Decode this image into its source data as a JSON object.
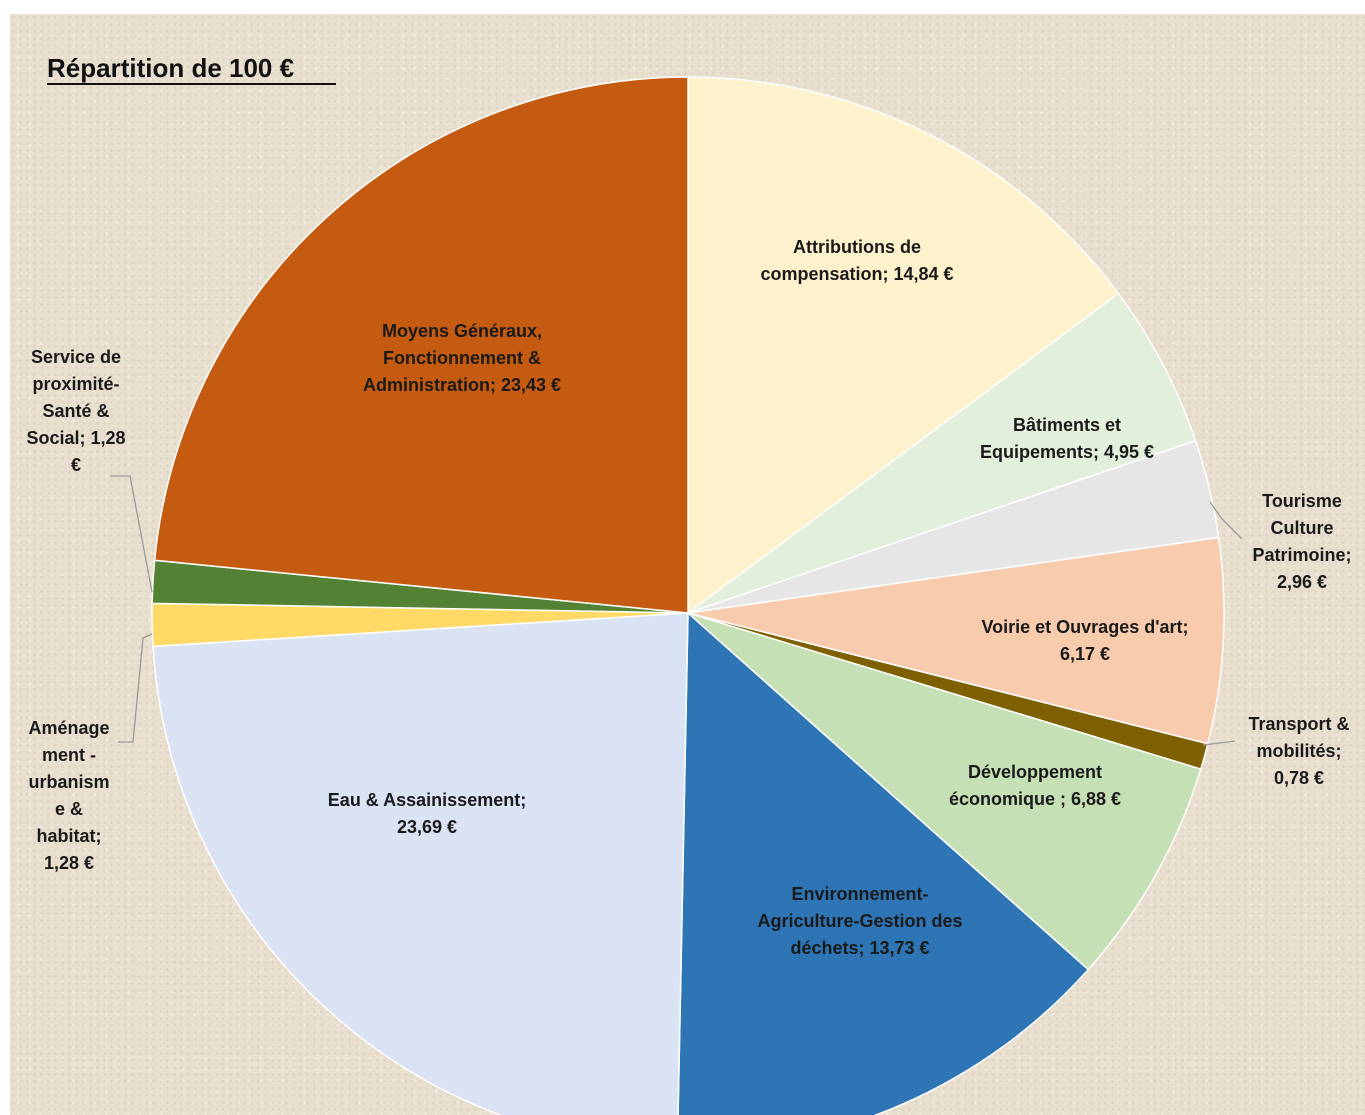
{
  "chart_data": {
    "type": "pie",
    "title": "Répartition de 100 €",
    "unit": "€",
    "start_angle_deg": 0,
    "direction": "clockwise",
    "slices": [
      {
        "name": "Attributions de compensation",
        "value": 14.84,
        "display": "14,84 €",
        "color": "#fef2cc"
      },
      {
        "name": "Bâtiments et Equipements",
        "value": 4.95,
        "display": "4,95 €",
        "color": "#e2efda"
      },
      {
        "name": "Tourisme Culture Patrimoine",
        "value": 2.96,
        "display": "2,96 €",
        "color": "#e7e6e6"
      },
      {
        "name": "Voirie et Ouvrages d'art",
        "value": 6.17,
        "display": "6,17 €",
        "color": "#f8cbad"
      },
      {
        "name": "Transport & mobilités",
        "value": 0.78,
        "display": "0,78 €",
        "color": "#7f6000"
      },
      {
        "name": "Développement économique",
        "value": 6.88,
        "display": "6,88 €",
        "color": "#c5e0b4"
      },
      {
        "name": "Environnement-Agriculture-Gestion des déchets",
        "value": 13.73,
        "display": "13,73 €",
        "color": "#2e75b6"
      },
      {
        "name": "Eau & Assainissement",
        "value": 23.69,
        "display": "23,69 €",
        "color": "#dae3f3"
      },
      {
        "name": "Aménagement - urbanisme & habitat",
        "value": 1.28,
        "display": "1,28 €",
        "color": "#ffd966"
      },
      {
        "name": "Service de proximité-Santé & Social",
        "value": 1.28,
        "display": "1,28 €",
        "color": "#548235"
      },
      {
        "name": "Moyens Généraux, Fonctionnement & Administration",
        "value": 23.43,
        "display": "23,43 €",
        "color": "#c55a11"
      }
    ],
    "labels": [
      {
        "lines": [
          "Attributions de",
          "compensation;  14,84 €"
        ]
      },
      {
        "lines": [
          "Bâtiments et",
          "Equipements;  4,95 €"
        ]
      },
      {
        "lines": [
          "Tourisme",
          "Culture",
          "Patrimoine;",
          "2,96 €"
        ]
      },
      {
        "lines": [
          "Voirie et Ouvrages d'art;",
          "6,17 €"
        ]
      },
      {
        "lines": [
          "Transport &",
          "mobilités;",
          "0,78 €"
        ]
      },
      {
        "lines": [
          "Développement",
          "économique ;  6,88 €"
        ]
      },
      {
        "lines": [
          "Environnement-",
          "Agriculture-Gestion des",
          "déchets;  13,73 €"
        ]
      },
      {
        "lines": [
          "Eau & Assainissement;",
          "23,69 €"
        ]
      },
      {
        "lines": [
          "Aménage",
          "ment -",
          "urbanism",
          "e &",
          "habitat;",
          "1,28 €"
        ]
      },
      {
        "lines": [
          "Service de",
          "proximité-",
          "Santé &",
          "Social;  1,28",
          "€"
        ]
      },
      {
        "lines": [
          "Moyens Généraux,",
          "Fonctionnement &",
          "Administration;  23,43 €"
        ]
      }
    ]
  }
}
